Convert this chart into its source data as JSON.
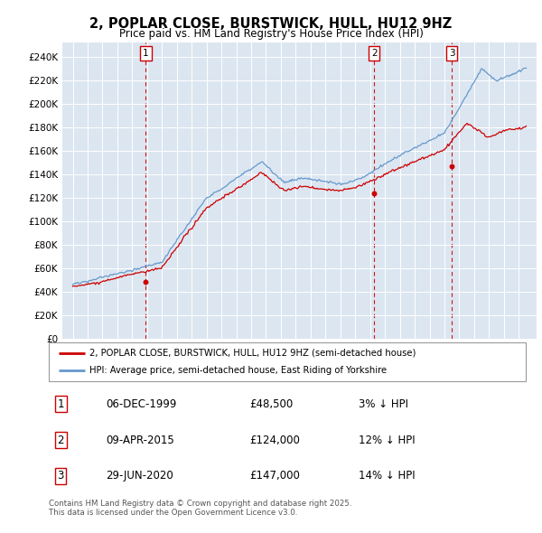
{
  "title": "2, POPLAR CLOSE, BURSTWICK, HULL, HU12 9HZ",
  "subtitle": "Price paid vs. HM Land Registry's House Price Index (HPI)",
  "background_color": "#dce6f1",
  "ylim": [
    0,
    250000
  ],
  "yticks": [
    0,
    20000,
    40000,
    60000,
    80000,
    100000,
    120000,
    140000,
    160000,
    180000,
    200000,
    220000,
    240000
  ],
  "sales": [
    {
      "label": "1",
      "date_num": 1999.92,
      "price": 48500,
      "date_str": "06-DEC-1999",
      "pct": "3%"
    },
    {
      "label": "2",
      "date_num": 2015.27,
      "price": 124000,
      "date_str": "09-APR-2015",
      "pct": "12%"
    },
    {
      "label": "3",
      "date_num": 2020.49,
      "price": 147000,
      "date_str": "29-JUN-2020",
      "pct": "14%"
    }
  ],
  "red_line_color": "#cc0000",
  "blue_line_color": "#6699cc",
  "legend_label_red": "2, POPLAR CLOSE, BURSTWICK, HULL, HU12 9HZ (semi-detached house)",
  "legend_label_blue": "HPI: Average price, semi-detached house, East Riding of Yorkshire",
  "footer1": "Contains HM Land Registry data © Crown copyright and database right 2025.",
  "footer2": "This data is licensed under the Open Government Licence v3.0.",
  "table_rows": [
    [
      "1",
      "06-DEC-1999",
      "£48,500",
      "3% ↓ HPI"
    ],
    [
      "2",
      "09-APR-2015",
      "£124,000",
      "12% ↓ HPI"
    ],
    [
      "3",
      "29-JUN-2020",
      "£147,000",
      "14% ↓ HPI"
    ]
  ]
}
